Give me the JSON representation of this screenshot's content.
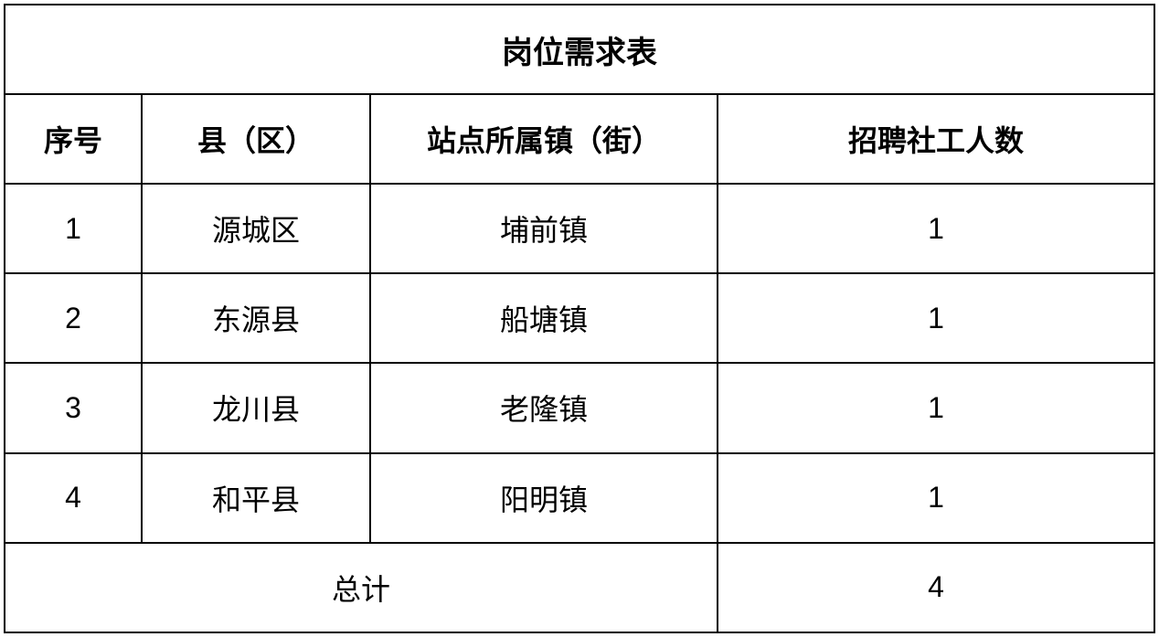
{
  "table": {
    "title": "岗位需求表",
    "headers": {
      "seq": "序号",
      "district": "县（区）",
      "town": "站点所属镇（街）",
      "count": "招聘社工人数"
    },
    "rows": [
      {
        "seq": "1",
        "district": "源城区",
        "town": "埔前镇",
        "count": "1"
      },
      {
        "seq": "2",
        "district": "东源县",
        "town": "船塘镇",
        "count": "1"
      },
      {
        "seq": "3",
        "district": "龙川县",
        "town": "老隆镇",
        "count": "1"
      },
      {
        "seq": "4",
        "district": "和平县",
        "town": "阳明镇",
        "count": "1"
      }
    ],
    "total": {
      "label": "总计",
      "value": "4"
    },
    "styling": {
      "border_color": "#000000",
      "border_width": 2,
      "background_color": "#ffffff",
      "text_color": "#000000",
      "font_family": "Microsoft YaHei",
      "title_fontsize": 34,
      "header_fontsize": 32,
      "cell_fontsize": 32,
      "title_fontweight": "bold",
      "header_fontweight": "bold",
      "cell_fontweight": "normal",
      "column_widths": {
        "seq": 150,
        "district": 250,
        "town": 380,
        "count": "auto"
      },
      "row_heights": {
        "title": 98,
        "header": 98,
        "data": 94,
        "total": 94
      }
    }
  }
}
